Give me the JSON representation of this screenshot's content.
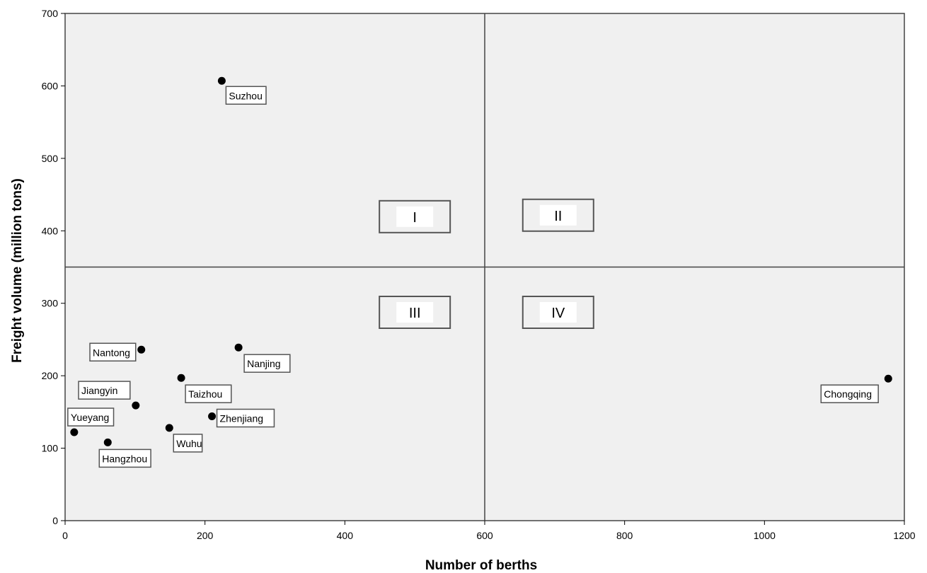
{
  "chart_data": {
    "type": "scatter",
    "xlabel": "Number of berths",
    "ylabel": "Freight volume (million tons)",
    "xlim": [
      0,
      1200
    ],
    "ylim": [
      0,
      700
    ],
    "xticks": [
      "0",
      "200",
      "400",
      "600",
      "800",
      "1000",
      "1200"
    ],
    "yticks": [
      "0",
      "100",
      "200",
      "300",
      "400",
      "500",
      "600",
      "700"
    ],
    "grid": false,
    "background_color": "#f0f0f0",
    "point_color": "#000000",
    "reference_lines": {
      "x": 600,
      "y": 350
    },
    "quadrant_labels": [
      {
        "text": "I",
        "x": 500,
        "y": 420
      },
      {
        "text": "II",
        "x": 705,
        "y": 422
      },
      {
        "text": "III",
        "x": 500,
        "y": 288
      },
      {
        "text": "IV",
        "x": 705,
        "y": 288
      }
    ],
    "points": [
      {
        "label": "Suzhou",
        "x": 224,
        "y": 607
      },
      {
        "label": "Nantong",
        "x": 109,
        "y": 236
      },
      {
        "label": "Nanjing",
        "x": 248,
        "y": 239
      },
      {
        "label": "Taizhou",
        "x": 166,
        "y": 197
      },
      {
        "label": "Jiangyin",
        "x": 101,
        "y": 159
      },
      {
        "label": "Zhenjiang",
        "x": 210,
        "y": 144
      },
      {
        "label": "Yueyang",
        "x": 13,
        "y": 122
      },
      {
        "label": "Wuhu",
        "x": 149,
        "y": 128
      },
      {
        "label": "Hangzhou",
        "x": 61,
        "y": 108
      },
      {
        "label": "Chongqing",
        "x": 1177,
        "y": 196
      }
    ]
  }
}
